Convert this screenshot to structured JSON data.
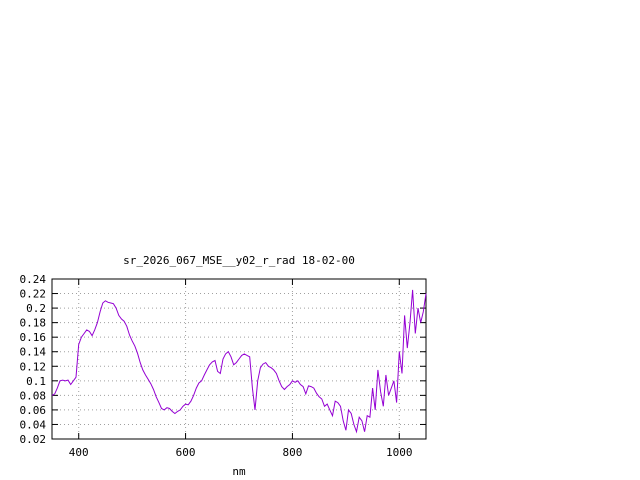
{
  "chart_data": {
    "type": "line",
    "title": "sr_2026_067_MSE__y02_r_rad 18-02-00",
    "xlabel": "nm",
    "ylabel": "",
    "xlim": [
      350,
      1050
    ],
    "ylim": [
      0.02,
      0.24
    ],
    "grid": true,
    "x_ticks": [
      400,
      600,
      800,
      1000
    ],
    "x_tick_labels": [
      "400",
      "600",
      "800",
      "1000"
    ],
    "y_ticks": [
      0.02,
      0.04,
      0.06,
      0.08,
      0.1,
      0.12,
      0.14,
      0.16,
      0.18,
      0.2,
      0.22,
      0.24
    ],
    "y_tick_labels": [
      "0.02",
      "0.04",
      "0.06",
      "0.08",
      "0.1",
      "0.12",
      "0.14",
      "0.16",
      "0.18",
      "0.2",
      "0.22",
      "0.24"
    ],
    "series_color": "#9400d3",
    "series": [
      {
        "x": [
          350,
          355,
          360,
          365,
          370,
          375,
          380,
          385,
          390,
          395,
          400,
          405,
          410,
          415,
          420,
          425,
          430,
          435,
          440,
          445,
          450,
          455,
          460,
          465,
          470,
          475,
          480,
          485,
          490,
          495,
          500,
          505,
          510,
          515,
          520,
          525,
          530,
          535,
          540,
          545,
          550,
          555,
          560,
          565,
          570,
          575,
          580,
          585,
          590,
          595,
          600,
          605,
          610,
          615,
          620,
          625,
          630,
          635,
          640,
          645,
          650,
          655,
          660,
          665,
          670,
          675,
          680,
          685,
          690,
          695,
          700,
          705,
          710,
          715,
          720,
          725,
          730,
          735,
          740,
          745,
          750,
          755,
          760,
          765,
          770,
          775,
          780,
          785,
          790,
          795,
          800,
          805,
          810,
          815,
          820,
          825,
          830,
          835,
          840,
          845,
          850,
          855,
          860,
          865,
          870,
          875,
          880,
          885,
          890,
          895,
          900,
          905,
          910,
          915,
          920,
          925,
          930,
          935,
          940,
          945,
          950,
          955,
          960,
          965,
          970,
          975,
          980,
          985,
          990,
          995,
          1000,
          1005,
          1010,
          1015,
          1020,
          1025,
          1030,
          1035,
          1040,
          1045,
          1050
        ],
        "y": [
          0.08,
          0.082,
          0.09,
          0.1,
          0.101,
          0.1,
          0.101,
          0.095,
          0.1,
          0.105,
          0.15,
          0.16,
          0.165,
          0.17,
          0.168,
          0.162,
          0.17,
          0.18,
          0.195,
          0.207,
          0.21,
          0.208,
          0.207,
          0.206,
          0.2,
          0.19,
          0.185,
          0.182,
          0.175,
          0.163,
          0.155,
          0.148,
          0.138,
          0.125,
          0.115,
          0.108,
          0.102,
          0.096,
          0.088,
          0.078,
          0.07,
          0.062,
          0.06,
          0.063,
          0.062,
          0.058,
          0.055,
          0.058,
          0.06,
          0.065,
          0.068,
          0.067,
          0.072,
          0.08,
          0.09,
          0.097,
          0.1,
          0.108,
          0.115,
          0.122,
          0.126,
          0.128,
          0.113,
          0.11,
          0.13,
          0.137,
          0.14,
          0.133,
          0.122,
          0.125,
          0.13,
          0.135,
          0.137,
          0.135,
          0.133,
          0.09,
          0.06,
          0.1,
          0.118,
          0.123,
          0.125,
          0.12,
          0.118,
          0.115,
          0.11,
          0.1,
          0.092,
          0.088,
          0.092,
          0.095,
          0.1,
          0.098,
          0.1,
          0.095,
          0.092,
          0.082,
          0.093,
          0.092,
          0.09,
          0.083,
          0.078,
          0.075,
          0.065,
          0.068,
          0.06,
          0.052,
          0.072,
          0.07,
          0.065,
          0.045,
          0.032,
          0.06,
          0.055,
          0.04,
          0.03,
          0.05,
          0.045,
          0.03,
          0.052,
          0.05,
          0.09,
          0.06,
          0.115,
          0.085,
          0.065,
          0.108,
          0.08,
          0.09,
          0.1,
          0.07,
          0.14,
          0.11,
          0.19,
          0.145,
          0.18,
          0.225,
          0.165,
          0.2,
          0.18,
          0.195,
          0.22
        ]
      }
    ]
  }
}
